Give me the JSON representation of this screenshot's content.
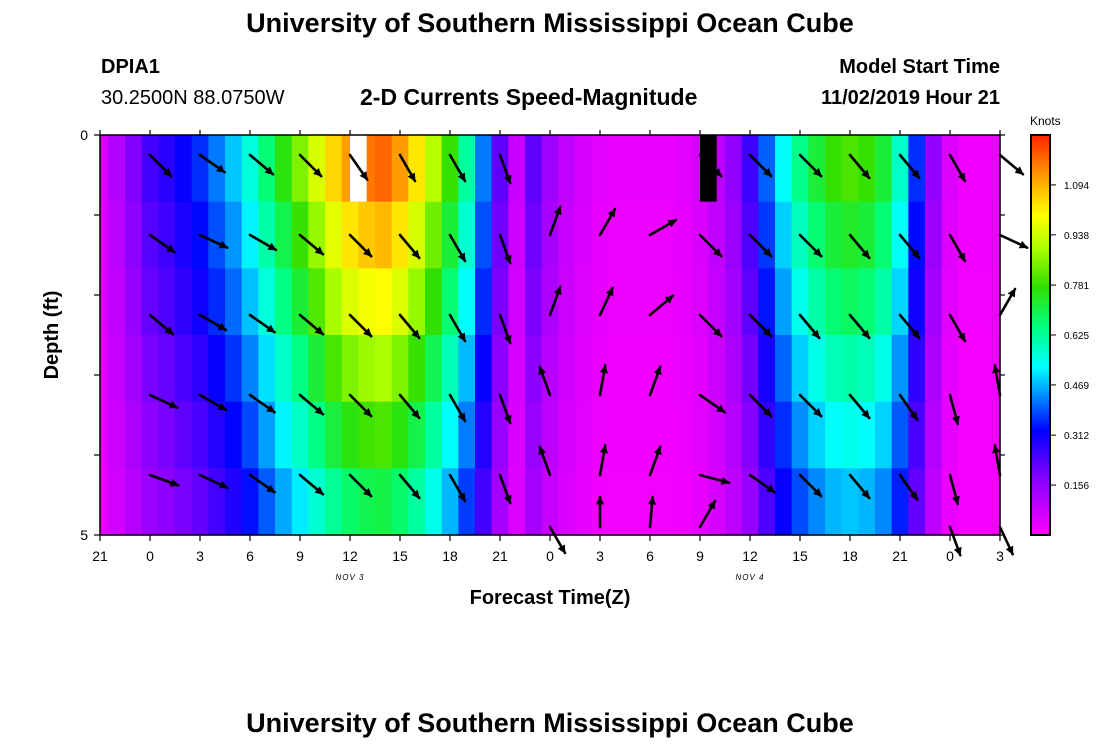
{
  "header": {
    "title": "University of Southern Mississippi Ocean Cube",
    "station_id": "DPIA1",
    "station_coords": "30.2500N 88.0750W",
    "subtitle": "2-D Currents Speed-Magnitude",
    "model_label": "Model Start Time",
    "model_time": "11/02/2019 Hour 21"
  },
  "footer": {
    "title": "University of Southern Mississippi Ocean Cube"
  },
  "colors": {
    "arrow": "#000000",
    "background": "#ffffff"
  },
  "chart_data": {
    "type": "heatmap",
    "xlabel": "Forecast Time(Z)",
    "ylabel": "Depth (ft)",
    "x_tick_labels": [
      "21",
      "0",
      "3",
      "6",
      "9",
      "12",
      "15",
      "18",
      "21",
      "0",
      "3",
      "6",
      "9",
      "12",
      "15",
      "18",
      "21",
      "0",
      "3"
    ],
    "x_range_hours": [
      0,
      54
    ],
    "date_labels": [
      {
        "label": "NOV 3",
        "at_tick_index": 5
      },
      {
        "label": "NOV 4",
        "at_tick_index": 13
      }
    ],
    "y_tick_labels": [
      {
        "label": "0",
        "depth": 0
      },
      {
        "label": "5",
        "depth": 5
      }
    ],
    "y_range_ft": [
      0,
      5
    ],
    "colorbar": {
      "title": "Knots",
      "ticks": [
        "1.094",
        "0.938",
        "0.781",
        "0.625",
        "0.469",
        "0.312",
        "0.156"
      ],
      "range": [
        0,
        1.25
      ],
      "scale": "magenta-blue-cyan-green-yellow-red"
    },
    "depth_layers": 6,
    "speed_profile_hours": [
      0,
      1,
      2,
      3,
      4,
      5,
      6,
      7,
      8,
      9,
      10,
      11,
      12,
      13,
      14,
      15,
      16,
      17,
      18,
      19,
      20,
      21,
      22,
      23,
      24,
      25,
      26,
      27,
      28,
      29,
      30,
      31,
      32,
      33,
      34,
      35,
      36,
      37,
      38,
      39,
      40,
      41,
      42,
      43,
      44,
      45,
      46,
      47,
      48,
      49,
      50,
      51,
      52,
      53,
      54
    ],
    "speed_profile_knots": [
      0.06,
      0.11,
      0.18,
      0.25,
      0.28,
      0.32,
      0.36,
      0.42,
      0.48,
      0.56,
      0.66,
      0.76,
      0.85,
      0.95,
      1.05,
      1.12,
      1.16,
      1.18,
      1.12,
      1.03,
      0.91,
      0.78,
      0.62,
      0.42,
      0.22,
      0.08,
      0.22,
      0.14,
      0.09,
      0.06,
      0.04,
      0.03,
      0.03,
      0.03,
      0.03,
      0.04,
      0.06,
      0.1,
      0.16,
      0.26,
      0.4,
      0.53,
      0.64,
      0.72,
      0.78,
      0.8,
      0.78,
      0.72,
      0.58,
      0.36,
      0.16,
      0.05,
      0.02,
      0.02,
      0.03
    ],
    "depth_speed_factor": [
      1.0,
      0.92,
      0.85,
      0.76,
      0.68,
      0.6
    ],
    "missing_cells": [
      {
        "hour": 15.5,
        "depth_layer": 0,
        "color": "#ffffff"
      },
      {
        "hour": 36.5,
        "depth_layer": 0,
        "color": "#000000"
      }
    ],
    "arrow_times_hours": [
      3,
      6,
      9,
      12,
      15,
      18,
      21,
      24,
      27,
      30,
      33,
      36,
      39,
      42,
      45,
      48,
      51,
      54
    ],
    "arrow_depths_ft": [
      0.25,
      1.25,
      2.25,
      3.25,
      4.25,
      4.9
    ],
    "arrow_directions_deg": [
      [
        135,
        125,
        130,
        135,
        145,
        150,
        150,
        160,
        null,
        null,
        null,
        135,
        135,
        135,
        140,
        140,
        150,
        130
      ],
      [
        125,
        115,
        120,
        130,
        135,
        140,
        150,
        160,
        20,
        30,
        60,
        135,
        135,
        135,
        140,
        140,
        150,
        115
      ],
      [
        130,
        120,
        125,
        130,
        135,
        140,
        150,
        160,
        20,
        25,
        50,
        135,
        135,
        140,
        140,
        140,
        150,
        30
      ],
      [
        115,
        120,
        125,
        130,
        135,
        140,
        150,
        160,
        340,
        10,
        20,
        125,
        135,
        135,
        140,
        145,
        165,
        350
      ],
      [
        110,
        115,
        125,
        130,
        135,
        140,
        150,
        160,
        340,
        10,
        20,
        105,
        125,
        135,
        140,
        145,
        165,
        350
      ],
      [
        null,
        null,
        null,
        null,
        null,
        null,
        null,
        null,
        150,
        0,
        5,
        30,
        null,
        null,
        null,
        null,
        160,
        155
      ]
    ]
  }
}
